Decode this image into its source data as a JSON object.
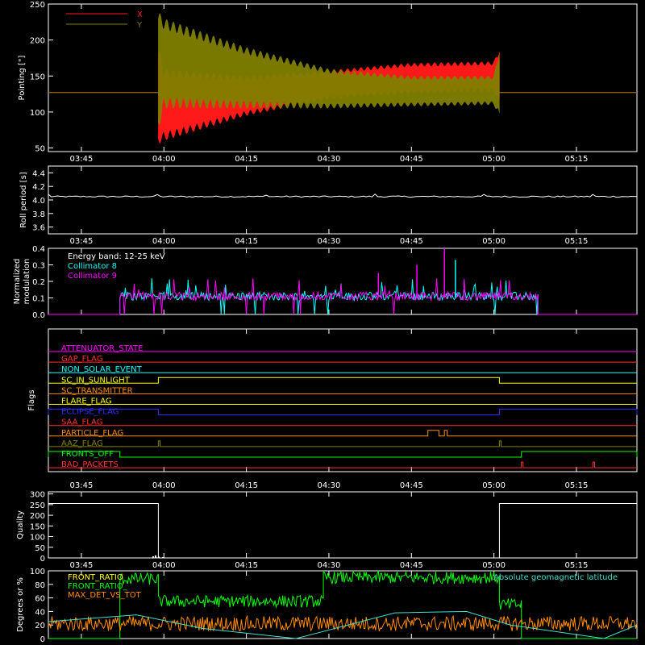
{
  "colors": {
    "background": "#000000",
    "axis": "#ffffff",
    "x_trace": "#ff1a1a",
    "y_trace": "#808000",
    "collimator8": "#00ffff",
    "collimator9": "#ff00ff",
    "front_ratio": "#ffff00",
    "front_ratio_b": "#00ff00",
    "max_det": "#ff8c00",
    "latitude": "#40e0d0"
  },
  "time_axis": {
    "range": [
      "03:39",
      "05:26"
    ],
    "ticks": [
      "03:45",
      "04:00",
      "04:15",
      "04:30",
      "04:45",
      "05:00",
      "05:15"
    ]
  },
  "chart_data": [
    {
      "type": "area",
      "ylabel": "Pointing [\"]",
      "ylim": [
        45,
        250
      ],
      "yticks": [
        "250",
        "200",
        "150",
        "100",
        "50"
      ],
      "legend": [
        "X",
        "Y"
      ],
      "legend_position": "top-left",
      "series": [
        {
          "name": "X",
          "t": [
            "03:39",
            "03:59",
            "04:00",
            "04:15",
            "04:30",
            "04:45",
            "05:00",
            "05:01",
            "05:26"
          ],
          "upper": [
            127,
            190,
            160,
            150,
            158,
            168,
            170,
            190,
            127
          ],
          "lower": [
            127,
            55,
            60,
            95,
            118,
            126,
            128,
            110,
            127
          ]
        },
        {
          "name": "Y",
          "t": [
            "03:39",
            "03:59",
            "04:00",
            "04:15",
            "04:30",
            "04:45",
            "05:00",
            "05:01",
            "05:26"
          ],
          "upper": [
            127,
            240,
            230,
            190,
            160,
            150,
            150,
            190,
            127
          ],
          "lower": [
            127,
            75,
            105,
            105,
            105,
            108,
            110,
            90,
            127
          ]
        }
      ]
    },
    {
      "type": "line",
      "ylabel": "Roll period [s]",
      "ylim": [
        3.5,
        4.5
      ],
      "yticks": [
        "4.4",
        "4.2",
        "4.0",
        "3.8",
        "3.6"
      ],
      "series": [
        {
          "name": "",
          "value": 4.05
        }
      ]
    },
    {
      "type": "bar",
      "ylabel": "Normalized modulation",
      "ylim": [
        0,
        0.4
      ],
      "yticks": [
        "0.4",
        "0.3",
        "0.2",
        "0.1",
        "0.0"
      ],
      "annotation": "Energy band: 12-25 keV",
      "active_range": [
        "03:52",
        "05:08"
      ],
      "series": [
        {
          "name": "Collimator 8"
        },
        {
          "name": "Collimator 9"
        }
      ],
      "spikes": [
        {
          "t": "04:51",
          "value": 0.4,
          "series": "Collimator 9"
        },
        {
          "t": "04:53",
          "value": 0.33,
          "series": "Collimator 8"
        },
        {
          "t": "04:39",
          "value": 0.25,
          "series": "Collimator 9"
        },
        {
          "t": "04:46",
          "value": 0.3,
          "series": "Collimator 9"
        }
      ]
    },
    {
      "type": "table",
      "ylabel": "Flags",
      "flags": [
        {
          "name": "ATTENUATOR_STATE",
          "color": "#ff00ff",
          "high": []
        },
        {
          "name": "GAP_FLAG",
          "color": "#ff3030",
          "high": []
        },
        {
          "name": "NON_SOLAR_EVENT",
          "color": "#00ffff",
          "high": []
        },
        {
          "name": "SC_IN_SUNLIGHT",
          "color": "#ffff00",
          "high": [
            [
              "03:59",
              "05:01"
            ]
          ]
        },
        {
          "name": "SC_TRANSMITTER",
          "color": "#ff8c00",
          "high": []
        },
        {
          "name": "FLARE_FLAG",
          "color": "#ffff00",
          "high": []
        },
        {
          "name": "ECLIPSE_FLAG",
          "color": "#3030ff",
          "high": [
            [
              "03:39",
              "03:59"
            ],
            [
              "05:01",
              "05:26"
            ]
          ]
        },
        {
          "name": "SAA_FLAG",
          "color": "#ff3030",
          "high": []
        },
        {
          "name": "PARTICLE_FLAG",
          "color": "#ff8c00",
          "high": [
            [
              "04:48",
              "04:50"
            ],
            [
              "04:51",
              "04:51.5"
            ]
          ]
        },
        {
          "name": "AAZ_FLAG",
          "color": "#808000",
          "high": [
            [
              "03:59",
              "03:59.3"
            ],
            [
              "05:01",
              "05:01.3"
            ]
          ]
        },
        {
          "name": "FRONTS_OFF",
          "color": "#00ff00",
          "high": [
            [
              "03:39",
              "03:52"
            ],
            [
              "05:05",
              "05:26"
            ]
          ]
        },
        {
          "name": "BAD_PACKETS",
          "color": "#ff3030",
          "high": [
            [
              "05:05",
              "05:05.3"
            ],
            [
              "05:18",
              "05:18.3"
            ]
          ]
        }
      ]
    },
    {
      "type": "line",
      "ylabel": "Quality",
      "ylim": [
        0,
        310
      ],
      "yticks": [
        "300",
        "250",
        "200",
        "150",
        "100",
        "50",
        "0"
      ],
      "series": [
        {
          "name": "",
          "t": [
            "03:39",
            "03:59",
            "03:59",
            "05:01",
            "05:01",
            "05:26"
          ],
          "values": [
            255,
            255,
            0,
            0,
            255,
            255
          ]
        }
      ]
    },
    {
      "type": "line",
      "ylabel": "Degrees or %",
      "ylim": [
        0,
        100
      ],
      "yticks": [
        "100",
        "80",
        "60",
        "40",
        "20",
        "0"
      ],
      "legend": [
        "FRONT_RATIO",
        "FRONT_RATIO_",
        "MAX_DET_VS_TOT"
      ],
      "right_label": "Absolute geomagnetic latitude",
      "series": [
        {
          "name": "FRONT_RATIO_",
          "t": [
            "03:52",
            "03:59",
            "03:59",
            "04:29",
            "04:29",
            "05:01",
            "05:01",
            "05:05"
          ],
          "values": [
            88,
            88,
            55,
            55,
            90,
            90,
            50,
            50
          ]
        },
        {
          "name": "MAX_DET_VS_TOT",
          "value": 22
        },
        {
          "name": "Absolute geomagnetic latitude",
          "t": [
            "03:39",
            "03:55",
            "04:07",
            "04:24",
            "04:42",
            "04:55",
            "05:03",
            "05:20",
            "05:26"
          ],
          "values": [
            25,
            35,
            15,
            0,
            38,
            40,
            20,
            0,
            20
          ]
        }
      ]
    }
  ]
}
